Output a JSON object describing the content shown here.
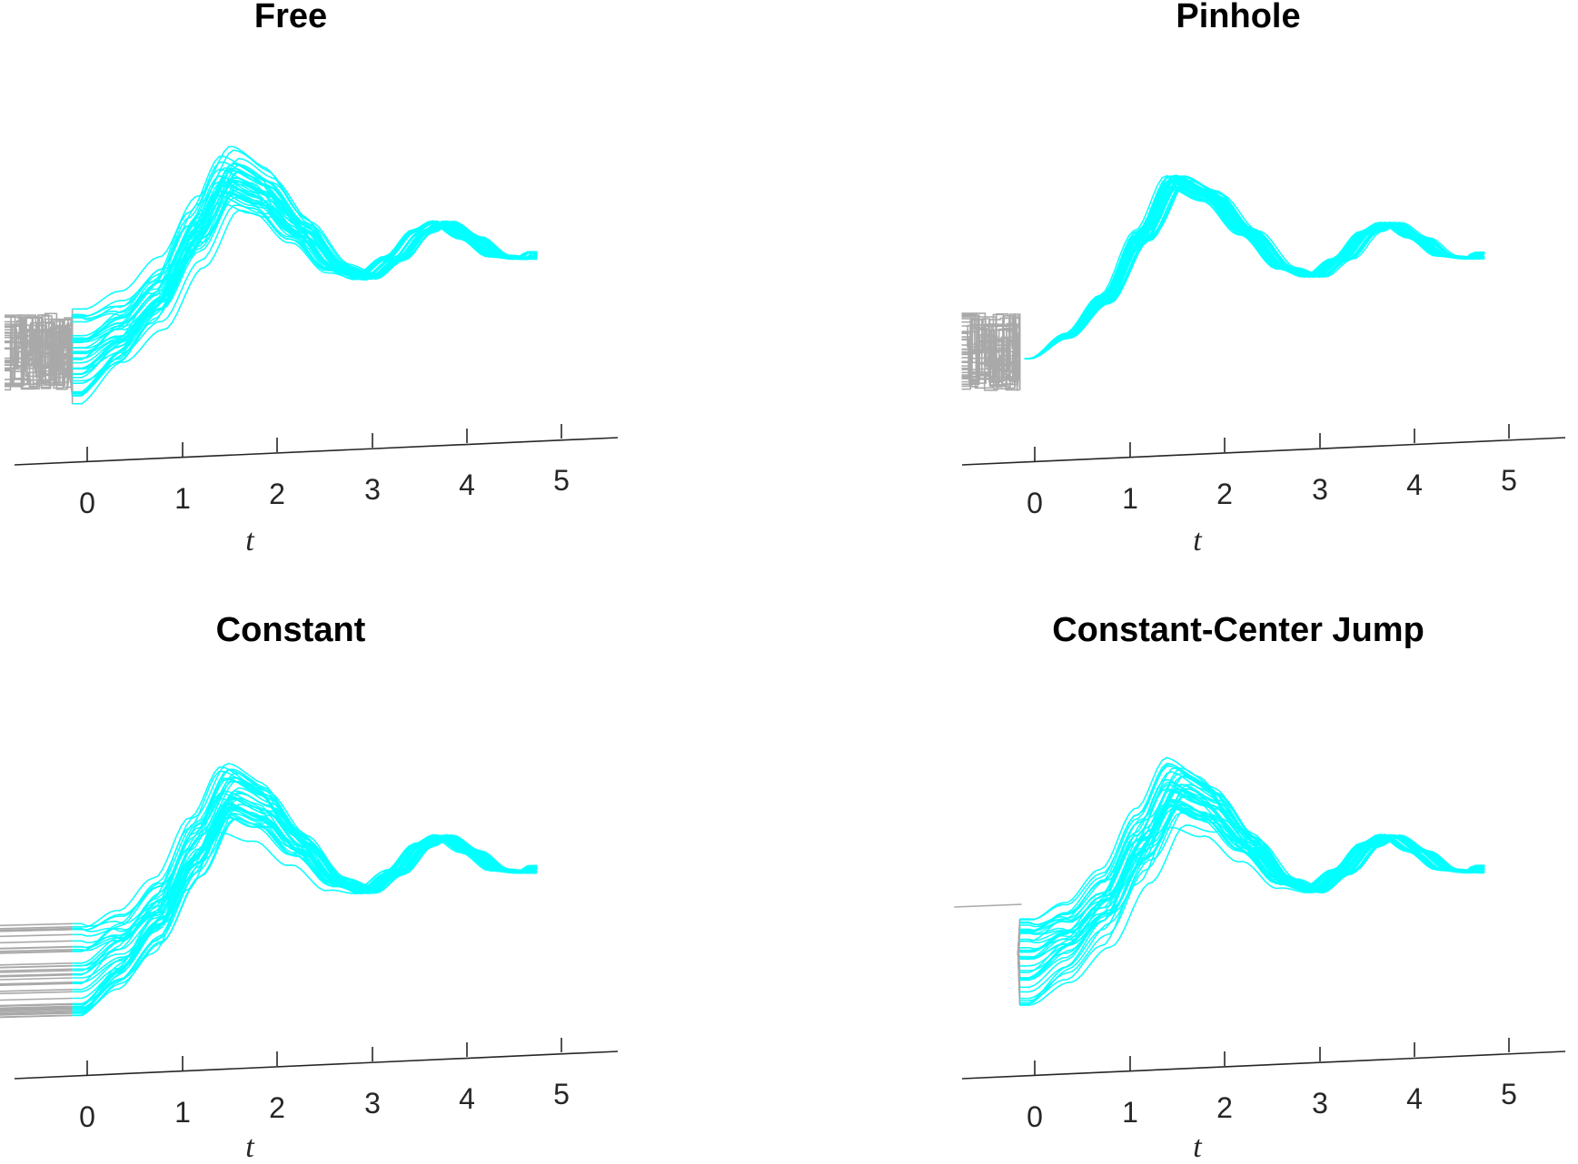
{
  "figure": {
    "colors": {
      "trajectory": "#00ffff",
      "history": "#a9a9a9",
      "axis": "#262626"
    }
  },
  "chart_data": [
    {
      "type": "line",
      "title": "Free",
      "xlabel": "t",
      "ylabel": "",
      "x_ticks": [
        "0",
        "1",
        "2",
        "3",
        "4",
        "5"
      ],
      "xlim": [
        -0.8,
        5
      ],
      "history_mode": "free",
      "grid": false
    },
    {
      "type": "line",
      "title": "Pinhole",
      "xlabel": "t",
      "ylabel": "",
      "x_ticks": [
        "0",
        "1",
        "2",
        "3",
        "4",
        "5"
      ],
      "xlim": [
        -0.8,
        5
      ],
      "history_mode": "pinhole",
      "grid": false
    },
    {
      "type": "line",
      "title": "Constant",
      "xlabel": "t",
      "ylabel": "",
      "x_ticks": [
        "0",
        "1",
        "2",
        "3",
        "4",
        "5"
      ],
      "xlim": [
        -0.8,
        5
      ],
      "history_mode": "constant",
      "grid": false
    },
    {
      "type": "line",
      "title": "Constant-Center Jump",
      "xlabel": "t",
      "ylabel": "",
      "x_ticks": [
        "0",
        "1",
        "2",
        "3",
        "4",
        "5"
      ],
      "xlim": [
        -0.8,
        5
      ],
      "history_mode": "jump",
      "grid": false
    }
  ]
}
